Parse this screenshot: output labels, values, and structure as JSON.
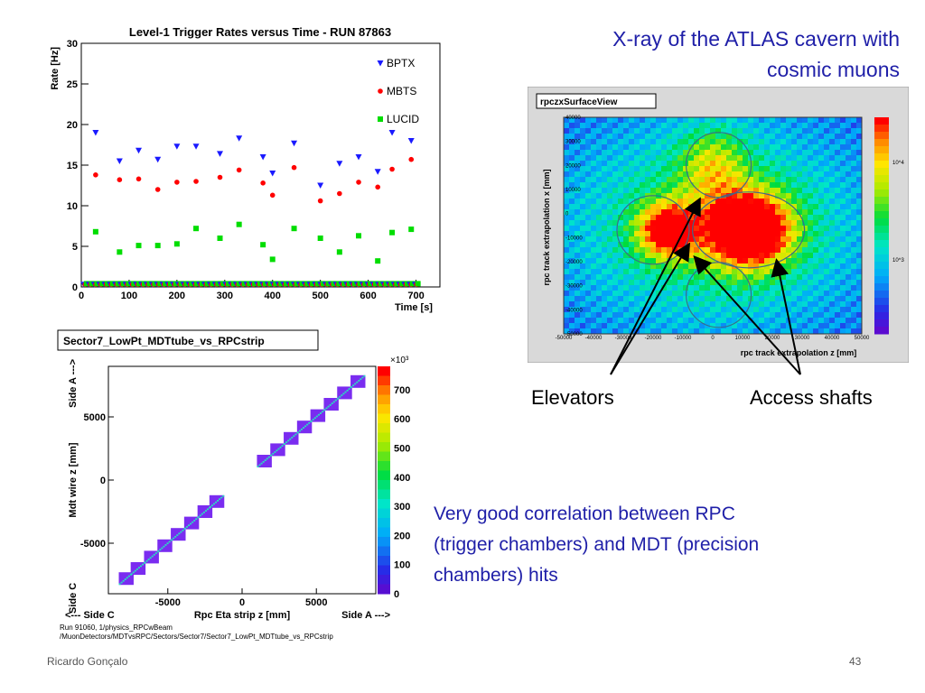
{
  "slide": {
    "xray_title": "X-ray of the ATLAS cavern with cosmic muons",
    "correlation_text": "Very good correlation between RPC (trigger chambers) and MDT (precision chambers) hits",
    "elevators_label": "Elevators",
    "access_shafts_label": "Access shafts",
    "footer_author": "Ricardo Gonçalo",
    "page_number": "43"
  },
  "colors": {
    "bptx": "#1a1aff",
    "mbts": "#ff0000",
    "lucid": "#00dd00",
    "text_blue": "#1f1fa8"
  },
  "chart_data": [
    {
      "type": "scatter",
      "title": "Level-1 Trigger Rates versus Time - RUN 87863",
      "xlabel": "Time [s]",
      "ylabel": "Rate [Hz]",
      "xlim": [
        0,
        750
      ],
      "ylim": [
        0,
        30
      ],
      "xticks": [
        "0",
        "100",
        "200",
        "300",
        "400",
        "500",
        "600",
        "700"
      ],
      "yticks": [
        "0",
        "5",
        "10",
        "15",
        "20",
        "25",
        "30"
      ],
      "legend": "top-right",
      "series": [
        {
          "name": "BPTX",
          "marker": "triangle",
          "color": "#1a1aff",
          "x": [
            30,
            80,
            120,
            160,
            200,
            240,
            290,
            330,
            380,
            400,
            445,
            500,
            540,
            580,
            620,
            650,
            690
          ],
          "y": [
            19,
            15.5,
            16.8,
            15.7,
            17.3,
            17.3,
            16.4,
            18.3,
            16.0,
            14.0,
            17.7,
            12.5,
            15.2,
            16.0,
            14.2,
            19.0,
            18.0
          ]
        },
        {
          "name": "MBTS",
          "marker": "circle",
          "color": "#ff0000",
          "x": [
            30,
            80,
            120,
            160,
            200,
            240,
            290,
            330,
            380,
            400,
            445,
            500,
            540,
            580,
            620,
            650,
            690
          ],
          "y": [
            13.8,
            13.2,
            13.3,
            12.0,
            12.9,
            13.0,
            13.5,
            14.4,
            12.8,
            11.3,
            14.7,
            10.6,
            11.5,
            12.9,
            12.3,
            14.5,
            15.7
          ]
        },
        {
          "name": "LUCID",
          "marker": "square",
          "color": "#00dd00",
          "x": [
            30,
            80,
            120,
            160,
            200,
            240,
            290,
            330,
            380,
            400,
            445,
            500,
            540,
            580,
            620,
            650,
            690
          ],
          "y": [
            6.8,
            4.3,
            5.1,
            5.1,
            5.3,
            7.2,
            6.0,
            7.7,
            5.2,
            3.4,
            7.2,
            6.0,
            4.3,
            6.3,
            3.2,
            6.7,
            7.1
          ]
        }
      ]
    },
    {
      "type": "heatmap",
      "title": "rpczxSurfaceView",
      "xlabel": "rpc track extrapolation z [mm]",
      "ylabel": "rpc track extrapolation x [mm]",
      "xticks": [
        "-50000",
        "-40000",
        "-30000",
        "-20000",
        "-10000",
        "0",
        "10000",
        "20000",
        "30000",
        "40000",
        "50000"
      ],
      "yticks": [
        "-50000",
        "-40000",
        "-30000",
        "-20000",
        "-10000",
        "0",
        "10000",
        "20000",
        "30000",
        "40000"
      ],
      "xlim": [
        -50000,
        50000
      ],
      "ylim": [
        -50000,
        40000
      ],
      "colorbar_ticks": [
        "10^3",
        "10^4"
      ],
      "log_scale": true
    },
    {
      "type": "heatmap",
      "title": "Sector7_LowPt_MDTtube_vs_RPCstrip",
      "xlabel": "Rpc Eta strip z [mm]",
      "ylabel": "Mdt wire z [mm]",
      "x_side_left": "<--- Side C",
      "x_side_right": "Side A --->",
      "y_side_top": "Side A --->",
      "y_side_bottom": "Side C",
      "xticks": [
        "-5000",
        "0",
        "5000"
      ],
      "yticks": [
        "-5000",
        "0",
        "5000"
      ],
      "colorbar_multiplier": "×10³",
      "colorbar_ticks": [
        "0",
        "100",
        "200",
        "300",
        "400",
        "500",
        "600",
        "700"
      ],
      "caption_line1": "Run 91060, 1/physics_RPCwBeam",
      "caption_line2": "/MuonDetectors/MDTvsRPC/Sectors/Sector7/Sector7_LowPt_MDTtube_vs_RPCstrip"
    }
  ]
}
